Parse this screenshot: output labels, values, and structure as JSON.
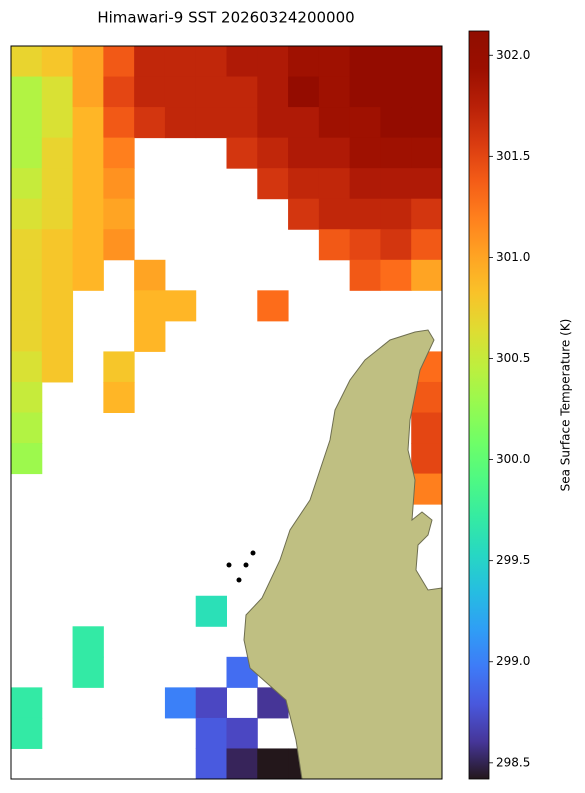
{
  "chart_data": {
    "type": "heatmap",
    "title": "Himawari-9 SST 20260324200000",
    "colorbar_label": "Sea Surface Temperature (K)",
    "cmap": "turbo",
    "clim": [
      298.42,
      302.12
    ],
    "cticks": [
      298.5,
      {
        "value": 299,
        "label": "299.0"
      },
      299.5,
      {
        "value": 300,
        "label": "300.0"
      },
      300.5,
      {
        "value": 301,
        "label": "301.0"
      },
      301.5,
      {
        "value": 302,
        "label": "302.0"
      }
    ],
    "values": [
      [
        300.7,
        300.8,
        301.0,
        301.4,
        301.7,
        301.7,
        301.7,
        301.8,
        301.8,
        301.9,
        301.9,
        302.0,
        302.0,
        302.0
      ],
      [
        300.4,
        300.6,
        301.0,
        301.5,
        301.7,
        301.7,
        301.7,
        301.7,
        301.8,
        302.0,
        301.9,
        302.0,
        302.0,
        302.0
      ],
      [
        300.4,
        300.6,
        300.9,
        301.4,
        301.6,
        301.7,
        301.7,
        301.7,
        301.8,
        301.8,
        301.9,
        301.9,
        302.0,
        302.0
      ],
      [
        300.4,
        300.7,
        300.9,
        301.2,
        null,
        null,
        null,
        301.6,
        301.7,
        301.8,
        301.8,
        301.9,
        301.9,
        301.9
      ],
      [
        300.5,
        300.7,
        300.9,
        301.1,
        null,
        null,
        null,
        null,
        301.6,
        301.7,
        301.7,
        301.8,
        301.8,
        301.8
      ],
      [
        300.6,
        300.7,
        300.9,
        301.0,
        null,
        null,
        null,
        null,
        null,
        301.6,
        301.7,
        301.7,
        301.7,
        301.6
      ],
      [
        300.7,
        300.8,
        300.9,
        301.1,
        null,
        null,
        null,
        null,
        null,
        null,
        301.4,
        301.5,
        301.6,
        301.4
      ],
      [
        300.7,
        300.8,
        300.9,
        null,
        301.0,
        null,
        null,
        null,
        null,
        null,
        null,
        301.4,
        301.3,
        301.0
      ],
      [
        300.7,
        300.8,
        null,
        null,
        300.9,
        300.9,
        null,
        null,
        301.3,
        null,
        null,
        null,
        null,
        null
      ],
      [
        300.7,
        300.8,
        null,
        null,
        300.9,
        null,
        null,
        null,
        null,
        null,
        null,
        null,
        null,
        null
      ],
      [
        300.6,
        300.8,
        null,
        300.8,
        null,
        null,
        null,
        null,
        null,
        null,
        null,
        null,
        null,
        301.3
      ],
      [
        300.5,
        null,
        null,
        300.9,
        null,
        null,
        null,
        null,
        null,
        null,
        null,
        null,
        null,
        301.4
      ],
      [
        300.4,
        null,
        null,
        null,
        null,
        null,
        null,
        null,
        null,
        null,
        null,
        null,
        null,
        301.5
      ],
      [
        300.3,
        null,
        null,
        null,
        null,
        null,
        null,
        null,
        null,
        null,
        null,
        null,
        null,
        301.5
      ],
      [
        null,
        null,
        null,
        null,
        null,
        null,
        null,
        null,
        null,
        null,
        null,
        null,
        null,
        301.2
      ],
      [
        null,
        null,
        null,
        null,
        null,
        null,
        null,
        null,
        null,
        null,
        null,
        null,
        null,
        null
      ],
      [
        null,
        null,
        null,
        null,
        null,
        null,
        null,
        null,
        null,
        null,
        null,
        null,
        null,
        null
      ],
      [
        null,
        null,
        null,
        null,
        null,
        null,
        null,
        null,
        null,
        null,
        null,
        null,
        null,
        null
      ],
      [
        null,
        null,
        null,
        null,
        null,
        null,
        299.6,
        null,
        null,
        null,
        null,
        null,
        null,
        null
      ],
      [
        null,
        null,
        299.7,
        null,
        null,
        null,
        null,
        null,
        null,
        null,
        null,
        null,
        null,
        null
      ],
      [
        null,
        null,
        299.7,
        null,
        null,
        null,
        null,
        298.9,
        null,
        null,
        null,
        null,
        null,
        null
      ],
      [
        299.7,
        null,
        null,
        null,
        null,
        299.0,
        298.7,
        null,
        298.6,
        null,
        null,
        null,
        null,
        null
      ],
      [
        299.7,
        null,
        null,
        null,
        null,
        null,
        298.8,
        298.7,
        null,
        null,
        null,
        null,
        null,
        null
      ],
      [
        null,
        null,
        null,
        null,
        null,
        null,
        298.8,
        298.5,
        298.4,
        298.4,
        null,
        null,
        null,
        null
      ]
    ]
  }
}
